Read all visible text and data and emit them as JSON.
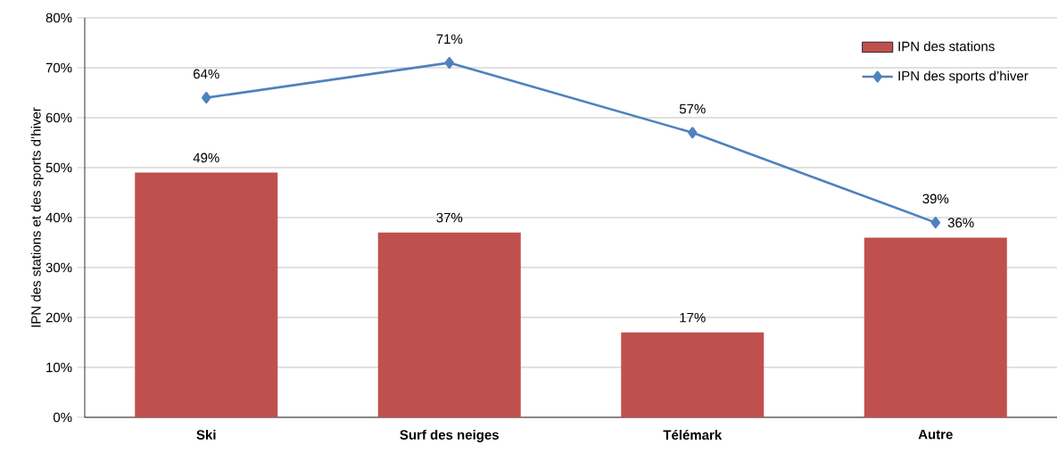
{
  "chart_data": {
    "type": "bar",
    "ylabel": "IPN des stations et des sports d’hiver",
    "categories": [
      "Ski",
      "Surf des neiges",
      "Télémark",
      "Autre"
    ],
    "series": [
      {
        "name": "IPN des stations",
        "color": "#c0504d",
        "values": [
          49,
          37,
          17,
          36
        ],
        "value_labels": [
          "49%",
          "37%",
          "17%",
          "36%"
        ]
      },
      {
        "name": "IPN des sports d’hiver",
        "type": "line",
        "color": "#4f81bd",
        "values": [
          64,
          71,
          57,
          39
        ],
        "value_labels": [
          "64%",
          "71%",
          "57%",
          "39%"
        ],
        "marker": "diamond",
        "line_style": "solid"
      }
    ],
    "ylim": [
      0,
      80
    ],
    "yticks": [
      {
        "value": 0,
        "label": "0%"
      },
      {
        "value": 10,
        "label": "10%"
      },
      {
        "value": 20,
        "label": "20%"
      },
      {
        "value": 30,
        "label": "30%"
      },
      {
        "value": 40,
        "label": "40%"
      },
      {
        "value": 50,
        "label": "50%"
      },
      {
        "value": 60,
        "label": "60%"
      },
      {
        "value": 70,
        "label": "70%"
      },
      {
        "value": 80,
        "label": "80%"
      }
    ],
    "grid": "y",
    "legend": "top right"
  }
}
